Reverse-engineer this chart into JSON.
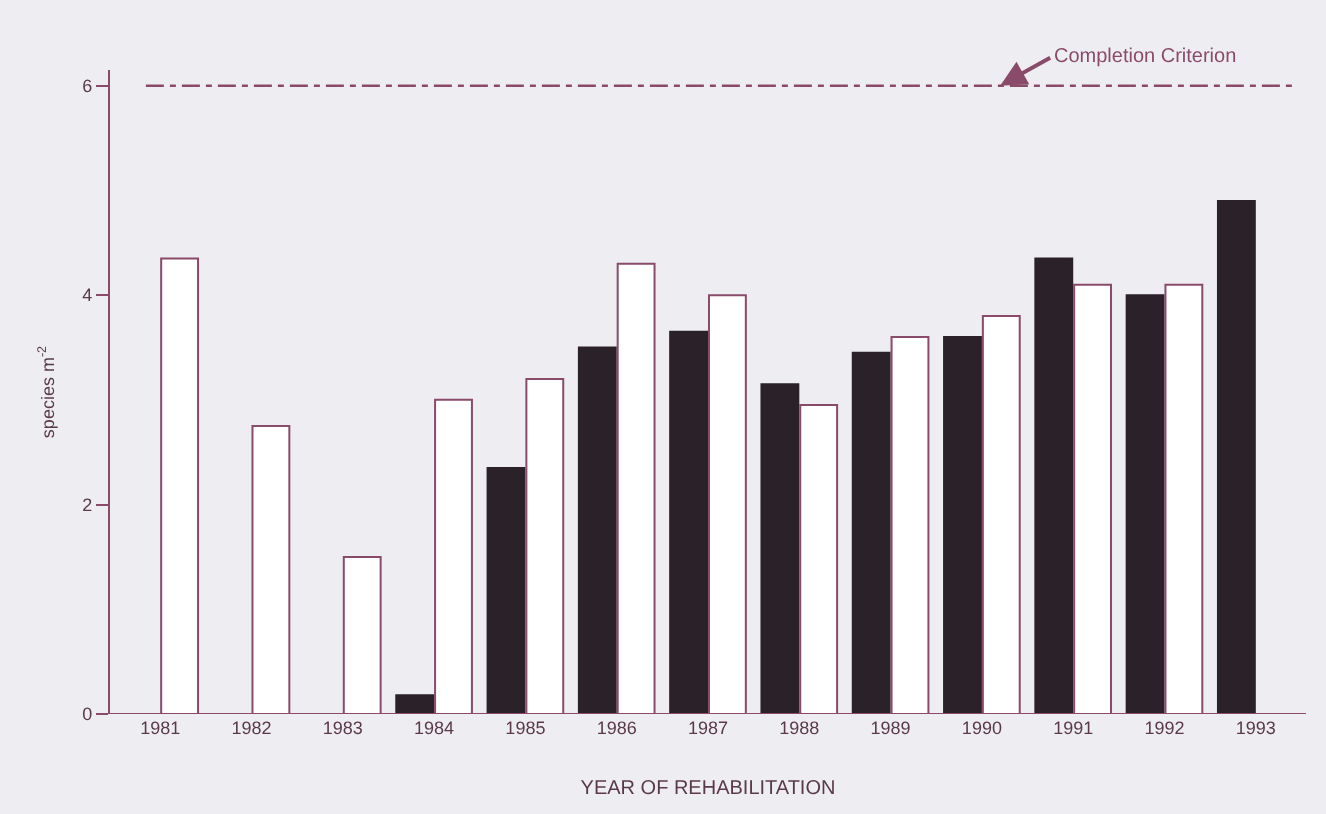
{
  "chart_data": {
    "type": "bar",
    "xlabel": "YEAR OF REHABILITATION",
    "ylabel": "species m$^{-2}$",
    "categories": [
      "1981",
      "1982",
      "1983",
      "1984",
      "1985",
      "1986",
      "1987",
      "1988",
      "1989",
      "1990",
      "1991",
      "1992",
      "1993"
    ],
    "series": [
      {
        "color": "#2a2228",
        "values": [
          0,
          0,
          0,
          0.18,
          2.35,
          3.5,
          3.65,
          3.15,
          3.45,
          3.6,
          4.35,
          4.0,
          4.9
        ]
      },
      {
        "color": "#ffffff",
        "values": [
          4.35,
          2.75,
          1.5,
          3.0,
          3.2,
          4.3,
          4.0,
          2.95,
          3.6,
          3.8,
          4.1,
          4.1,
          null
        ]
      }
    ],
    "ylim": [
      0,
      6.15
    ],
    "yticks": [
      0,
      2,
      4,
      6
    ],
    "grid": false,
    "ref_lines": [
      {
        "axis": "y",
        "value": 6,
        "label": "Completion Criterion",
        "color": "#8a4a6a",
        "line_style": "dashdot"
      }
    ]
  }
}
